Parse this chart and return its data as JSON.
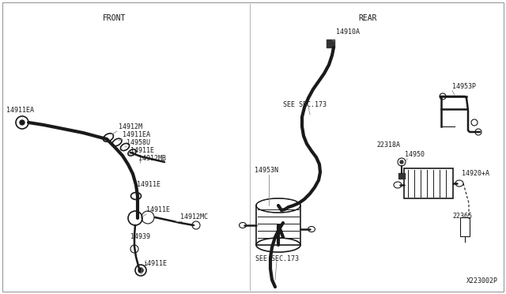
{
  "bg_color": "#ffffff",
  "line_color": "#1a1a1a",
  "gray": "#888888",
  "front_label": "FRONT",
  "rear_label": "REAR",
  "diagram_id": "X223002P",
  "fs_label": 6.0,
  "fs_header": 7.0,
  "lw_hose": 3.0,
  "lw_thick": 1.8,
  "lw_thin": 0.8,
  "lw_med": 1.2
}
